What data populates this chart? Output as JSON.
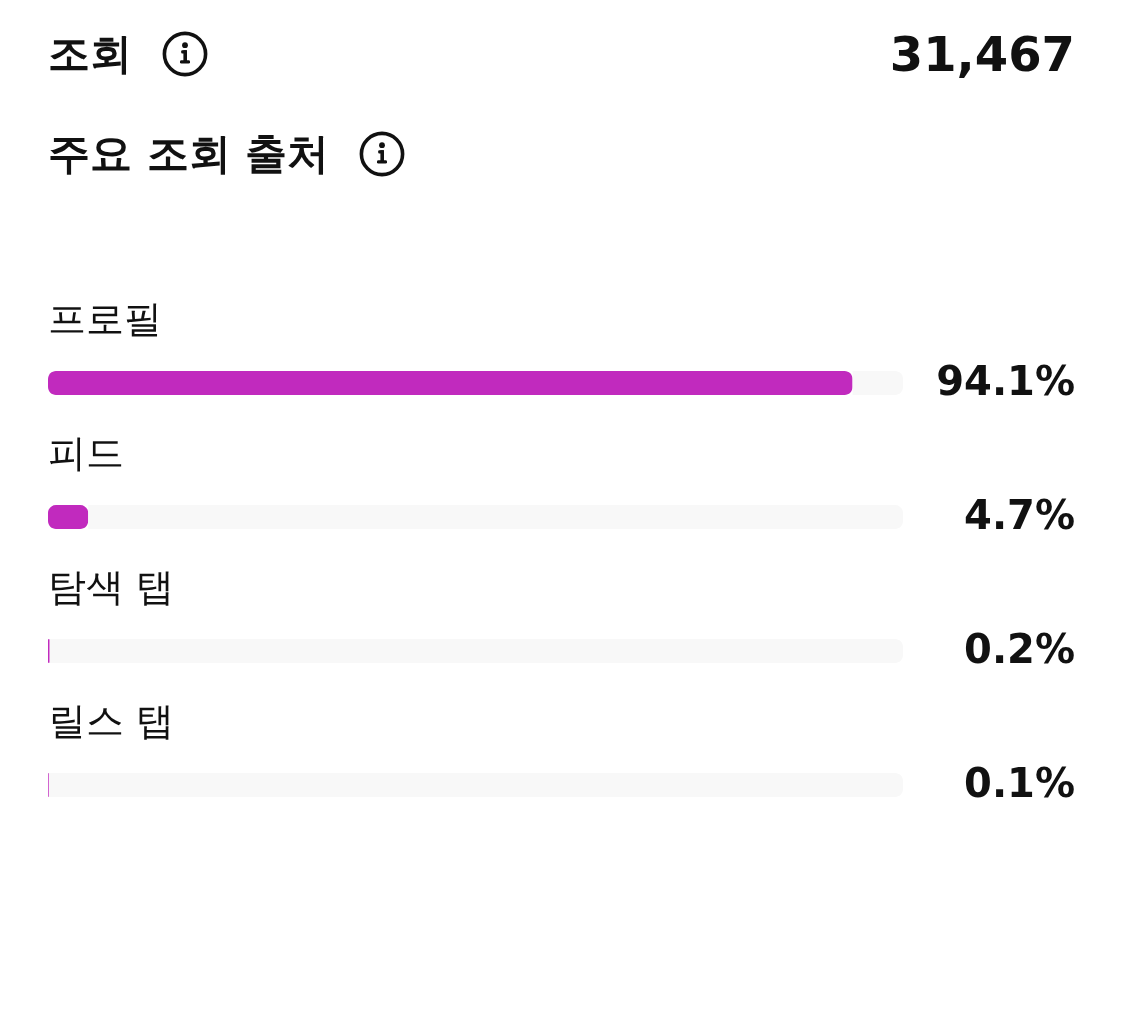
{
  "chart_data": [
    {
      "type": "other",
      "title": "조회",
      "annotations": [
        "31,467"
      ]
    },
    {
      "type": "bar",
      "orientation": "horizontal",
      "title": "주요 조회 출처",
      "categories": [
        "프로필",
        "피드",
        "탐색 탭",
        "릴스 탭"
      ],
      "values": [
        94.1,
        4.7,
        0.2,
        0.1
      ],
      "value_labels": [
        "94.1%",
        "4.7%",
        "0.2%",
        "0.1%"
      ],
      "color": "#c12abe",
      "xlim": [
        0,
        100
      ]
    }
  ]
}
